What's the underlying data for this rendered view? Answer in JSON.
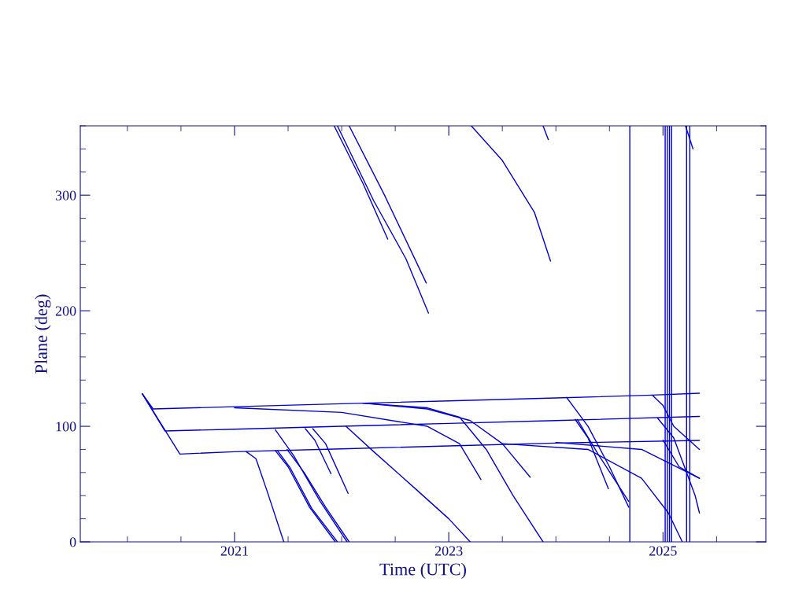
{
  "chart_data": {
    "type": "line",
    "xlabel": "Time (UTC)",
    "ylabel": "Plane (deg)",
    "xlim": [
      2019.56,
      2025.96
    ],
    "ylim": [
      0,
      360
    ],
    "xticks": [
      2021,
      2023,
      2025
    ],
    "yticks": [
      0,
      100,
      200,
      300
    ],
    "series": [
      {
        "color": "#0000cc",
        "x": [
          2020.14,
          2020.24,
          2021.0,
          2022.0,
          2023.0,
          2024.0,
          2024.9,
          2025.34
        ],
        "values": [
          128,
          115,
          117,
          119.5,
          122,
          124.5,
          127,
          128.6
        ]
      },
      {
        "color": "#0000cc",
        "x": [
          2020.14,
          2020.35,
          2021.0,
          2022.0,
          2023.0,
          2024.0,
          2025.34
        ],
        "values": [
          128,
          96,
          97.5,
          100,
          102.5,
          105,
          108.5
        ]
      },
      {
        "color": "#0000cc",
        "x": [
          2020.14,
          2020.49,
          2021.0,
          2022.0,
          2023.0,
          2024.0,
          2025.34
        ],
        "values": [
          128,
          76,
          78,
          80.5,
          83,
          85.5,
          87.8
        ]
      },
      {
        "color": "#0000cc",
        "x": [
          2021.11,
          2021.2,
          2021.3,
          2021.46
        ],
        "values": [
          78,
          72,
          45,
          0
        ]
      },
      {
        "color": "#0000cc",
        "x": [
          2021.38,
          2021.5,
          2021.7,
          2021.94
        ],
        "values": [
          79,
          65,
          30,
          0
        ]
      },
      {
        "color": "#0000cc",
        "x": [
          2021.4,
          2021.52,
          2021.72,
          2021.96
        ],
        "values": [
          79,
          64,
          29,
          0
        ]
      },
      {
        "color": "#0000cc",
        "x": [
          2021.49,
          2021.65,
          2021.85,
          2022.07
        ],
        "values": [
          80,
          60,
          30,
          0
        ]
      },
      {
        "color": "#0000cc",
        "x": [
          2021.38,
          2021.55,
          2021.8,
          2022.05
        ],
        "values": [
          97,
          75,
          35,
          0
        ]
      },
      {
        "color": "#0000cc",
        "x": [
          2021.66,
          2021.75,
          2021.9
        ],
        "values": [
          98,
          88,
          59
        ]
      },
      {
        "color": "#0000cc",
        "x": [
          2021.73,
          2021.85,
          2022.06
        ],
        "values": [
          98,
          85,
          42
        ]
      },
      {
        "color": "#0000cc",
        "x": [
          2022.04,
          2022.3,
          2022.7,
          2023.0,
          2023.2
        ],
        "values": [
          100,
          78,
          45,
          20,
          0
        ]
      },
      {
        "color": "#0000cc",
        "x": [
          2021.0,
          2022.0,
          2022.8,
          2023.1,
          2023.3
        ],
        "values": [
          116,
          112,
          100,
          85,
          54
        ]
      },
      {
        "color": "#0000cc",
        "x": [
          2022.2,
          2022.8,
          2023.2,
          2023.5,
          2023.76
        ],
        "values": [
          120,
          115,
          105,
          85,
          56
        ]
      },
      {
        "color": "#0000cc",
        "x": [
          2022.2,
          2022.8,
          2023.1,
          2023.35,
          2023.6,
          2023.88
        ],
        "values": [
          120,
          116,
          108,
          80,
          40,
          0
        ]
      },
      {
        "color": "#0000cc",
        "x": [
          2021.93,
          2022.2,
          2022.43
        ],
        "values": [
          360,
          310,
          262
        ]
      },
      {
        "color": "#0000cc",
        "x": [
          2021.96,
          2022.3,
          2022.6,
          2022.81
        ],
        "values": [
          360,
          295,
          245,
          198
        ]
      },
      {
        "color": "#0000cc",
        "x": [
          2022.07,
          2022.4,
          2022.79
        ],
        "values": [
          360,
          300,
          224
        ]
      },
      {
        "color": "#0000cc",
        "x": [
          2023.21,
          2023.5,
          2023.8,
          2023.95
        ],
        "values": [
          360,
          330,
          285,
          243
        ]
      },
      {
        "color": "#0000cc",
        "x": [
          2023.88,
          2023.93
        ],
        "values": [
          360,
          348
        ]
      },
      {
        "color": "#0000cc",
        "x": [
          2025.21,
          2025.28
        ],
        "values": [
          360,
          340
        ]
      },
      {
        "color": "#0000cc",
        "x": [
          2024.1,
          2024.3,
          2024.5,
          2024.68
        ],
        "values": [
          125,
          100,
          65,
          30
        ]
      },
      {
        "color": "#0000cc",
        "x": [
          2024.18,
          2024.3,
          2024.49
        ],
        "values": [
          106,
          90,
          46
        ]
      },
      {
        "color": "#0000cc",
        "x": [
          2024.2,
          2024.4,
          2024.68
        ],
        "values": [
          106,
          75,
          35
        ]
      },
      {
        "color": "#0000cc",
        "x": [
          2023.5,
          2024.3,
          2024.8,
          2025.05,
          2025.18
        ],
        "values": [
          85,
          80,
          55,
          25,
          0
        ]
      },
      {
        "color": "#0000cc",
        "x": [
          2024.0,
          2024.8,
          2025.34
        ],
        "values": [
          86,
          80,
          55
        ]
      },
      {
        "color": "#0000cc",
        "x": [
          2024.9,
          2025.0,
          2025.1,
          2025.34
        ],
        "values": [
          127,
          118,
          100,
          80
        ]
      },
      {
        "color": "#0000cc",
        "x": [
          2024.95,
          2025.1,
          2025.3,
          2025.34
        ],
        "values": [
          107,
          90,
          40,
          25
        ]
      },
      {
        "color": "#0000cc",
        "x": [
          2025.0,
          2025.15,
          2025.34
        ],
        "values": [
          88,
          65,
          55
        ]
      },
      {
        "color": "#0000cc",
        "x": [
          2024.69,
          2024.69
        ],
        "values": [
          0,
          360
        ]
      },
      {
        "color": "#0000cc",
        "x": [
          2025.02,
          2025.02
        ],
        "values": [
          0,
          360
        ]
      },
      {
        "color": "#0000cc",
        "x": [
          2025.04,
          2025.04
        ],
        "values": [
          0,
          360
        ]
      },
      {
        "color": "#0000cc",
        "x": [
          2025.06,
          2025.06
        ],
        "values": [
          0,
          360
        ]
      },
      {
        "color": "#0000cc",
        "x": [
          2025.08,
          2025.08
        ],
        "values": [
          0,
          360
        ]
      },
      {
        "color": "#0000cc",
        "x": [
          2025.22,
          2025.22
        ],
        "values": [
          0,
          360
        ]
      },
      {
        "color": "#0000cc",
        "x": [
          2025.25,
          2025.25
        ],
        "values": [
          0,
          360
        ]
      }
    ]
  }
}
